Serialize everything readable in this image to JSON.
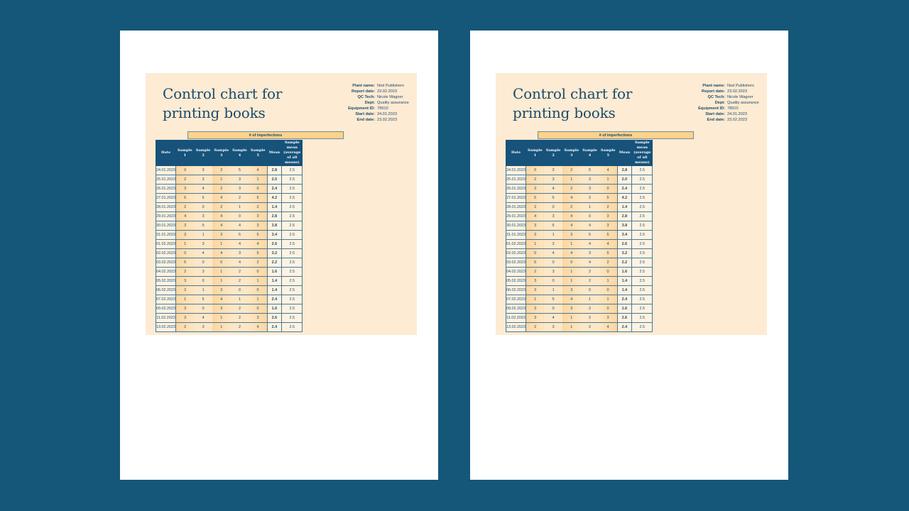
{
  "document": {
    "title_line1": "Control chart for",
    "title_line2": "printing books",
    "meta": [
      {
        "label": "Plant name:",
        "value": "Nod Publishers"
      },
      {
        "label": "Report date:",
        "value": "23.02.2023"
      },
      {
        "label": "QC Tech:",
        "value": "Nicole Wagner"
      },
      {
        "label": "Dept:",
        "value": "Quality assurance"
      },
      {
        "label": "Equipment ID:",
        "value": "78910"
      },
      {
        "label": "Start date:",
        "value": "24.01.2023"
      },
      {
        "label": "End date:",
        "value": "23.02.2023"
      }
    ],
    "table": {
      "group_header": "# of imperfections",
      "headers": [
        "Date",
        "Sample 1",
        "Sample 2",
        "Sample 3",
        "Sample 4",
        "Sample 5",
        "Mean",
        "Sample mean (average of all means)"
      ],
      "rows": [
        [
          "24.01.2023",
          "0",
          "3",
          "2",
          "5",
          "4",
          "2.8",
          "2.5"
        ],
        [
          "25.01.2023",
          "2",
          "3",
          "1",
          "3",
          "1",
          "2.0",
          "2.5"
        ],
        [
          "26.01.2023",
          "3",
          "4",
          "2",
          "3",
          "0",
          "2.4",
          "2.5"
        ],
        [
          "27.01.2023",
          "5",
          "5",
          "4",
          "2",
          "5",
          "4.2",
          "2.5"
        ],
        [
          "28.01.2023",
          "2",
          "0",
          "2",
          "1",
          "2",
          "1.4",
          "2.5"
        ],
        [
          "29.01.2023",
          "4",
          "3",
          "4",
          "0",
          "3",
          "2.8",
          "2.5"
        ],
        [
          "30.01.2023",
          "3",
          "5",
          "4",
          "4",
          "3",
          "3.8",
          "2.5"
        ],
        [
          "31.01.2023",
          "3",
          "1",
          "3",
          "5",
          "5",
          "3.4",
          "2.5"
        ],
        [
          "01.02.2023",
          "1",
          "3",
          "1",
          "4",
          "4",
          "2.6",
          "2.5"
        ],
        [
          "02.02.2023",
          "0",
          "4",
          "4",
          "3",
          "5",
          "3.2",
          "2.5"
        ],
        [
          "03.02.2023",
          "5",
          "0",
          "0",
          "4",
          "2",
          "2.2",
          "2.5"
        ],
        [
          "04.02.2023",
          "2",
          "3",
          "1",
          "2",
          "0",
          "1.6",
          "2.5"
        ],
        [
          "05.02.2023",
          "3",
          "0",
          "1",
          "2",
          "1",
          "1.4",
          "2.5"
        ],
        [
          "06.02.2023",
          "3",
          "1",
          "3",
          "0",
          "0",
          "1.4",
          "2.5"
        ],
        [
          "07.02.2023",
          "1",
          "5",
          "4",
          "1",
          "1",
          "2.4",
          "2.5"
        ],
        [
          "09.02.2023",
          "3",
          "0",
          "3",
          "2",
          "0",
          "1.6",
          "2.5"
        ],
        [
          "11.02.2023",
          "3",
          "4",
          "1",
          "2",
          "3",
          "2.6",
          "2.5"
        ],
        [
          "13.02.2023",
          "2",
          "3",
          "1",
          "2",
          "4",
          "2.4",
          "2.5"
        ]
      ]
    }
  },
  "colors": {
    "background": "#155779",
    "panel": "#fdebd3",
    "header": "#16527a",
    "group_header": "#fdd28b",
    "text": "#1b4a6b"
  }
}
